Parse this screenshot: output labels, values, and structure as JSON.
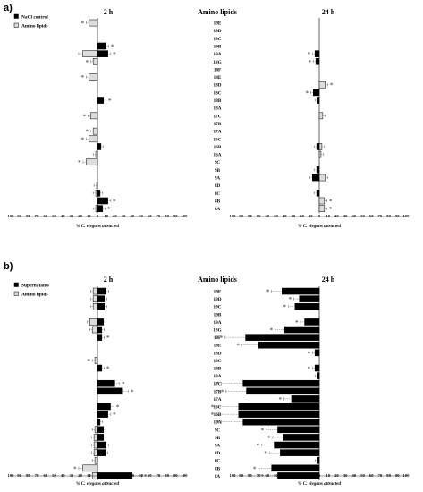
{
  "figure": {
    "panel_a_label": "a)",
    "panel_b_label": "b)"
  },
  "chart_data": [
    {
      "panel": "a)",
      "type": "bar",
      "orientation": "horizontal",
      "title_center": "Amino lipids",
      "left_title": "2 h",
      "right_title": "24 h",
      "legend": [
        "NaCl control",
        "Amino lipids"
      ],
      "xlabel": "% C. elegans attracted",
      "x_ticks": [
        "100",
        "90",
        "80",
        "70",
        "60",
        "50",
        "40",
        "30",
        "20",
        "10",
        "0",
        "10",
        "20",
        "30",
        "40",
        "50",
        "60",
        "70",
        "80",
        "90",
        "100"
      ],
      "xlim": [
        -100,
        100
      ],
      "categories": [
        "19E",
        "19D",
        "19C",
        "19B",
        "19A",
        "18G",
        "18F",
        "18E",
        "18D",
        "18C",
        "18B",
        "18A",
        "17C",
        "17B",
        "17A",
        "16C",
        "16B",
        "16A",
        "9C",
        "9B",
        "9A",
        "8D",
        "8C",
        "8B",
        "8A"
      ],
      "series": [
        {
          "name": "Amino lipids",
          "panel_side": "2 h",
          "values": [
            -10,
            0,
            0,
            0,
            -17,
            -5,
            0,
            -10,
            0,
            0,
            0,
            0,
            -8,
            0,
            -5,
            -10,
            0,
            -2,
            -13,
            0,
            0,
            -1,
            -2,
            0,
            -2
          ],
          "significant": [
            true,
            false,
            false,
            false,
            false,
            true,
            false,
            true,
            false,
            false,
            false,
            false,
            true,
            false,
            true,
            true,
            false,
            false,
            true,
            false,
            false,
            false,
            false,
            false,
            false
          ]
        },
        {
          "name": "NaCl control",
          "panel_side": "2 h",
          "values": [
            0,
            0,
            0,
            10,
            12,
            0,
            0,
            0,
            0,
            0,
            7,
            0,
            0,
            0,
            0,
            0,
            4,
            0,
            0,
            0,
            0,
            0,
            3,
            12,
            6
          ],
          "significant": [
            false,
            false,
            false,
            true,
            true,
            false,
            false,
            false,
            false,
            false,
            true,
            false,
            false,
            false,
            false,
            false,
            false,
            false,
            false,
            false,
            false,
            false,
            false,
            true,
            true
          ]
        },
        {
          "name": "Amino lipids",
          "panel_side": "24 h",
          "values": [
            0,
            0,
            0,
            0,
            0,
            0,
            0,
            0,
            7,
            0,
            0,
            0,
            4,
            0,
            0,
            0,
            3,
            2,
            0,
            0,
            7,
            0,
            0,
            6,
            6
          ],
          "significant": [
            false,
            false,
            false,
            false,
            false,
            false,
            false,
            false,
            true,
            false,
            false,
            false,
            false,
            false,
            false,
            false,
            false,
            false,
            false,
            false,
            false,
            false,
            false,
            true,
            true
          ]
        },
        {
          "name": "NaCl control",
          "panel_side": "24 h",
          "values": [
            0,
            0,
            0,
            0,
            -5,
            -4,
            0,
            0,
            0,
            -7,
            -2,
            0,
            0,
            0,
            0,
            0,
            -3,
            0,
            0,
            -3,
            -8,
            0,
            -3,
            0,
            0
          ],
          "significant": [
            false,
            false,
            false,
            false,
            true,
            true,
            false,
            false,
            false,
            true,
            false,
            false,
            false,
            false,
            false,
            false,
            false,
            false,
            false,
            false,
            false,
            false,
            false,
            false,
            false
          ]
        }
      ]
    },
    {
      "panel": "b)",
      "type": "bar",
      "orientation": "horizontal",
      "title_center": "Amino lipids",
      "left_title": "2 h",
      "right_title": "24 h",
      "legend": [
        "Supernatants",
        "Amino lipids"
      ],
      "xlabel": "% C. elegans attracted",
      "x_ticks": [
        "100",
        "90",
        "80",
        "70",
        "60",
        "50",
        "40",
        "30",
        "20",
        "10",
        "0",
        "10",
        "20",
        "30",
        "40",
        "50",
        "60",
        "70",
        "80",
        "90",
        "100"
      ],
      "xlim": [
        -100,
        100
      ],
      "categories": [
        "19E",
        "19D",
        "19C",
        "19B",
        "19A",
        "18G",
        "18F",
        "18E",
        "18D",
        "18C",
        "18B",
        "18A",
        "17C",
        "17B",
        "17A",
        "16C",
        "16B",
        "16A",
        "9C",
        "9B",
        "9A",
        "8D",
        "8C",
        "8B",
        "8A"
      ],
      "series": [
        {
          "name": "Amino lipids",
          "panel_side": "2 h",
          "values": [
            -5,
            -5,
            -5,
            0,
            -9,
            -6,
            0,
            0,
            0,
            -3,
            0,
            0,
            0,
            0,
            0,
            0,
            0,
            0,
            -3,
            -4,
            -4,
            -4,
            -3,
            -17,
            -6
          ],
          "significant": [
            false,
            false,
            false,
            false,
            false,
            false,
            false,
            false,
            false,
            true,
            false,
            false,
            false,
            false,
            false,
            false,
            false,
            false,
            false,
            false,
            false,
            false,
            false,
            true,
            false
          ]
        },
        {
          "name": "Supernatants",
          "panel_side": "2 h",
          "values": [
            10,
            8,
            8,
            0,
            7,
            5,
            5,
            0,
            0,
            0,
            5,
            0,
            20,
            28,
            0,
            15,
            12,
            3,
            7,
            7,
            10,
            9,
            0,
            0,
            40
          ],
          "significant": [
            false,
            false,
            false,
            false,
            false,
            false,
            true,
            false,
            false,
            false,
            true,
            false,
            true,
            true,
            false,
            true,
            true,
            false,
            false,
            false,
            false,
            false,
            false,
            false,
            true
          ]
        },
        {
          "name": "Supernatants",
          "panel_side": "24 h",
          "values": [
            -43,
            -23,
            -28,
            0,
            -17,
            -40,
            -85,
            -70,
            -5,
            0,
            -5,
            -2,
            -88,
            -84,
            -32,
            -93,
            -93,
            -88,
            -48,
            -42,
            -52,
            -45,
            -2,
            -55,
            -48
          ],
          "significant": [
            true,
            true,
            true,
            false,
            true,
            true,
            true,
            true,
            true,
            false,
            true,
            false,
            true,
            true,
            true,
            true,
            true,
            true,
            true,
            true,
            true,
            true,
            false,
            true,
            true
          ]
        }
      ]
    }
  ]
}
